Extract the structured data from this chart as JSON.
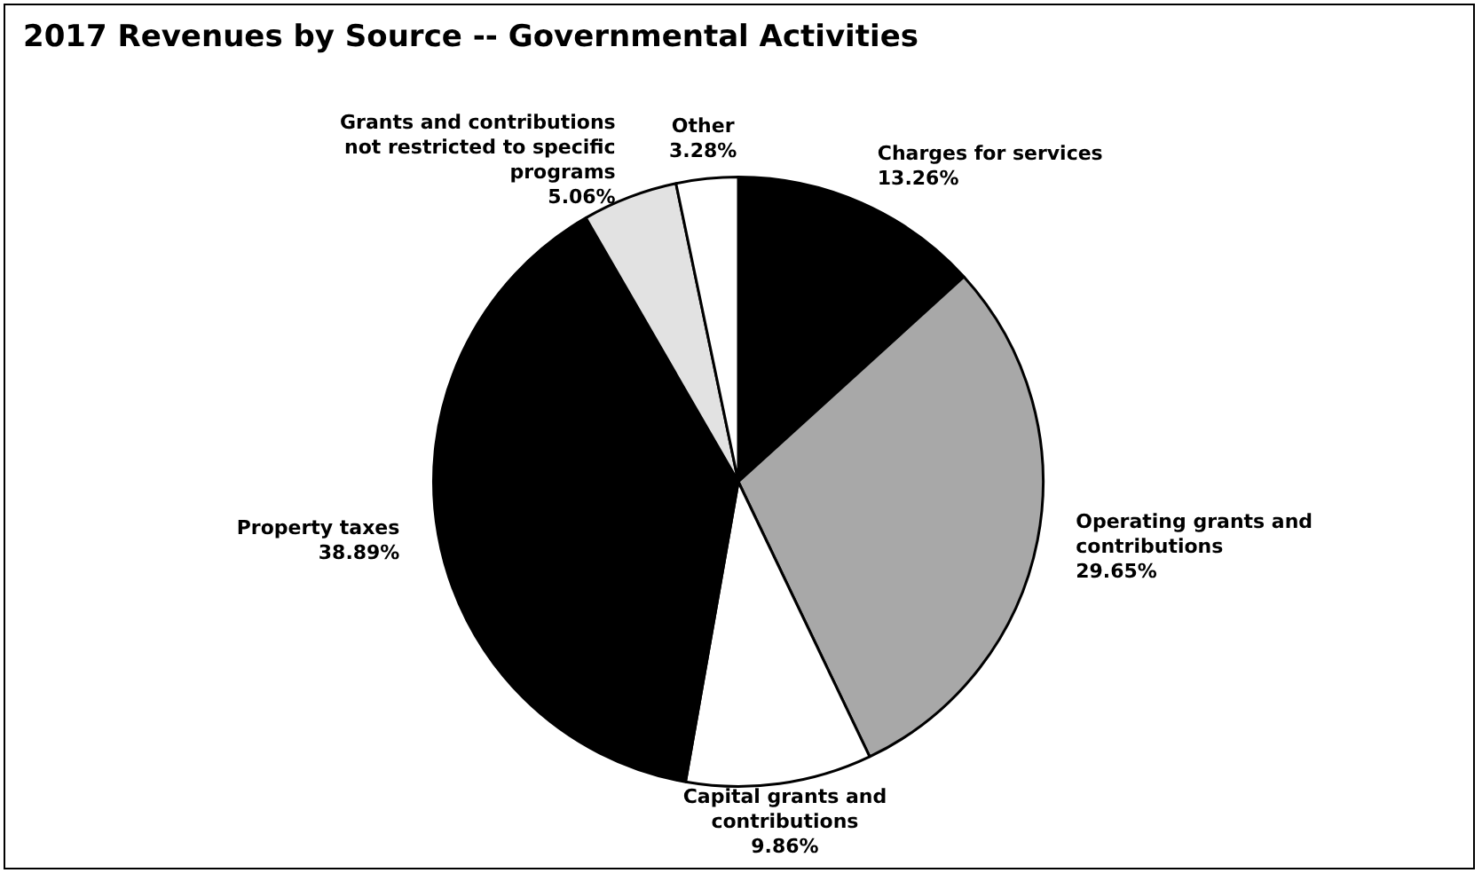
{
  "chart_data": {
    "type": "pie",
    "title": "2017 Revenues by Source -- Governmental Activities",
    "categories": [
      "Charges for services",
      "Operating grants and contributions",
      "Capital grants and contributions",
      "Property taxes",
      "Grants and contributions not restricted to specific programs",
      "Other"
    ],
    "values": [
      13.26,
      29.65,
      9.86,
      38.89,
      5.06,
      3.28
    ],
    "value_labels": [
      "13.26%",
      "29.65%",
      "9.86%",
      "38.89%",
      "5.06%",
      "3.28%"
    ],
    "colors": [
      "#000000",
      "#a8a8a8",
      "#ffffff",
      "#000000",
      "#e2e2e2",
      "#ffffff"
    ],
    "legend": false
  }
}
